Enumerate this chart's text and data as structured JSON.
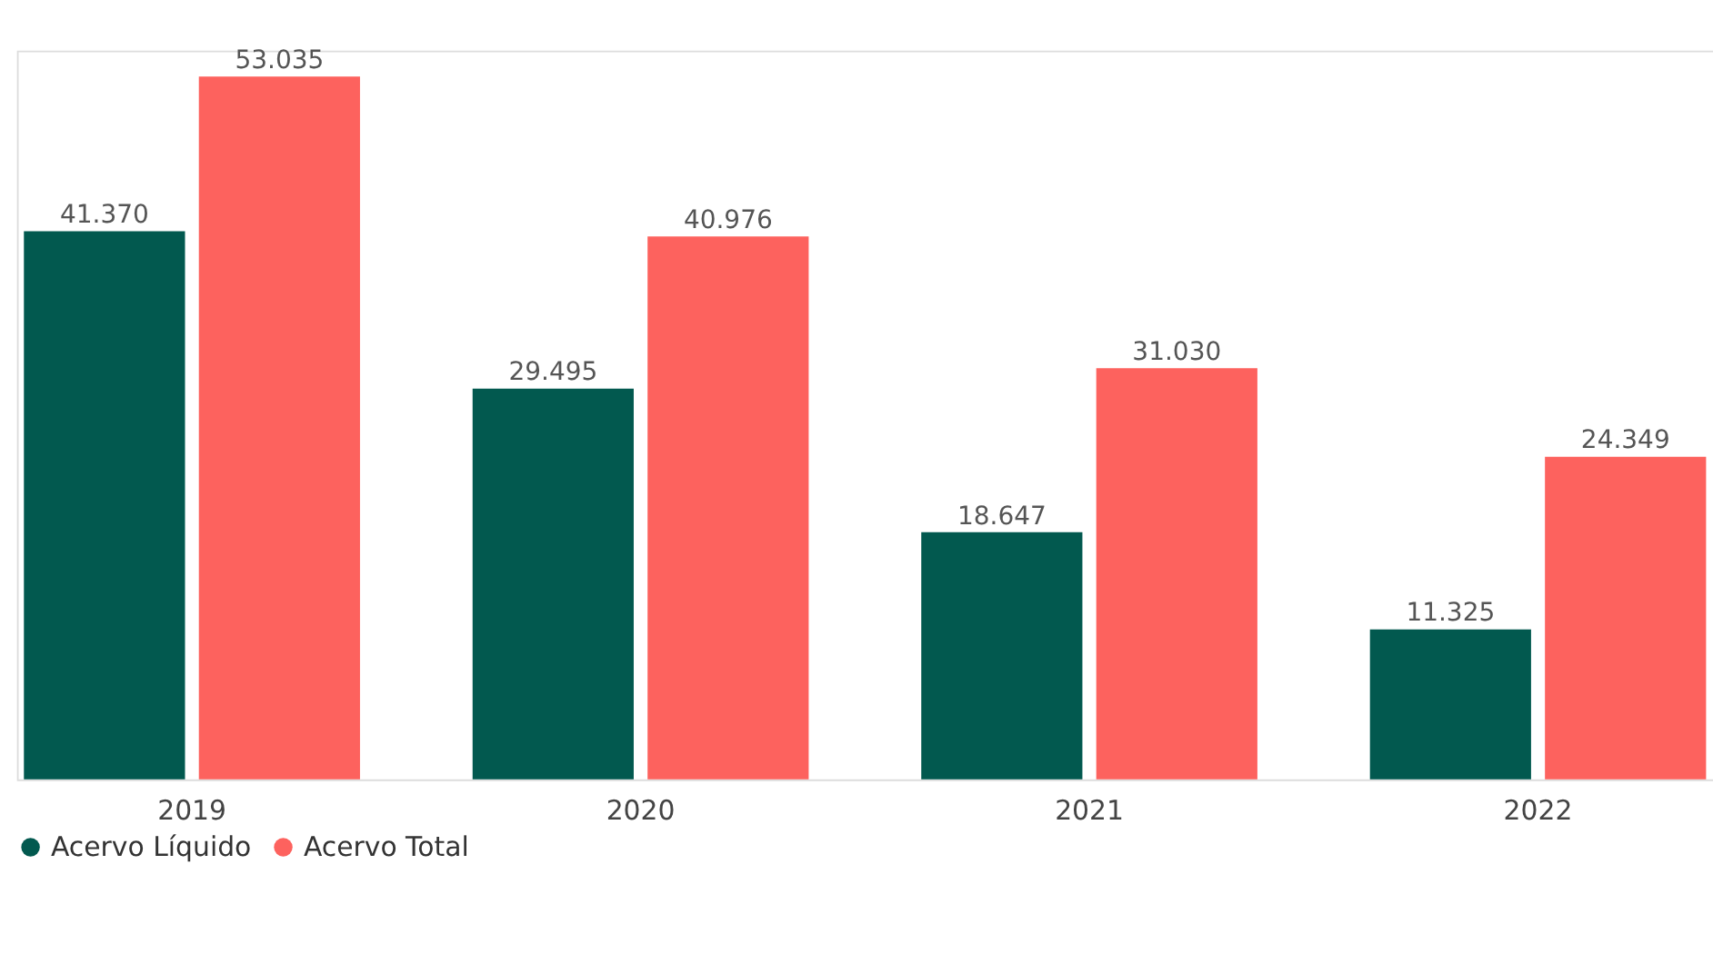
{
  "chart_data": {
    "type": "bar",
    "categories": [
      "2019",
      "2020",
      "2021",
      "2022"
    ],
    "series": [
      {
        "name": "Acervo Líquido",
        "color": "#02594f",
        "values": [
          41370,
          29495,
          18647,
          11325
        ],
        "value_labels": [
          "41.370",
          "29.495",
          "18.647",
          "11.325"
        ]
      },
      {
        "name": "Acervo Total",
        "color": "#fd625e",
        "values": [
          53035,
          40976,
          31030,
          24349
        ],
        "value_labels": [
          "53.035",
          "40.976",
          "31.030",
          "24.349"
        ]
      }
    ],
    "legend": "bottom"
  }
}
